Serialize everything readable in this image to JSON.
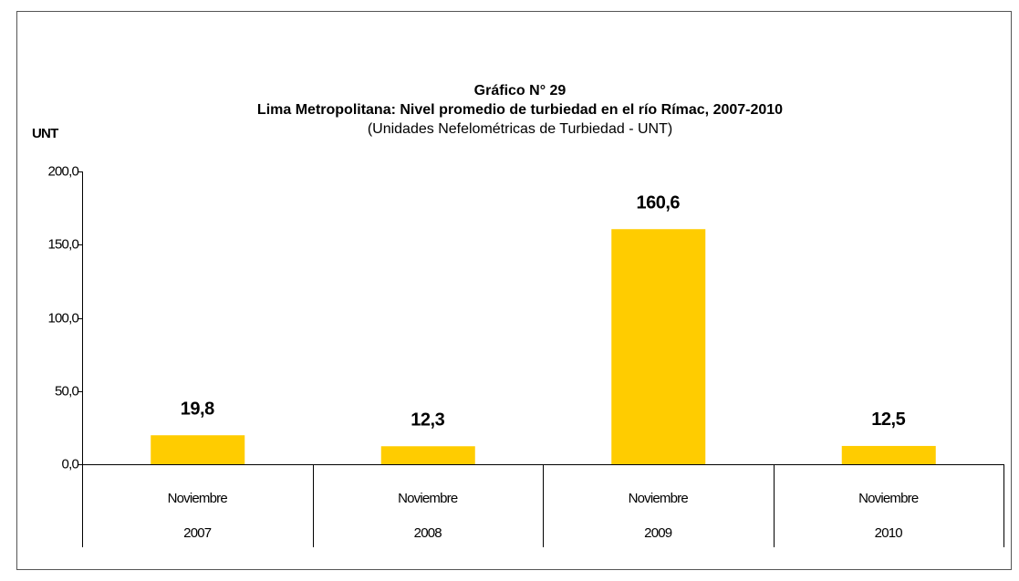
{
  "chart_data": {
    "type": "bar",
    "title": "Gráfico N° 29",
    "subtitle": "Lima Metropolitana: Nivel promedio de turbiedad en el río Rímac, 2007-2010",
    "note": "(Unidades Nefelométricas de Turbiedad - UNT)",
    "y_label": "UNT",
    "categories": [
      [
        "Noviembre",
        "2007"
      ],
      [
        "Noviembre",
        "2008"
      ],
      [
        "Noviembre",
        "2009"
      ],
      [
        "Noviembre",
        "2010"
      ]
    ],
    "values": [
      19.8,
      12.3,
      160.6,
      12.5
    ],
    "value_labels": [
      "19,8",
      "12,3",
      "160,6",
      "12,5"
    ],
    "color": "#ffcc00",
    "ylim": [
      0,
      200
    ],
    "yticks": [
      {
        "value": 0,
        "label": "0,0"
      },
      {
        "value": 50,
        "label": "50,0"
      },
      {
        "value": 100,
        "label": "100,0"
      },
      {
        "value": 150,
        "label": "150,0"
      },
      {
        "value": 200,
        "label": "200,0"
      }
    ]
  }
}
